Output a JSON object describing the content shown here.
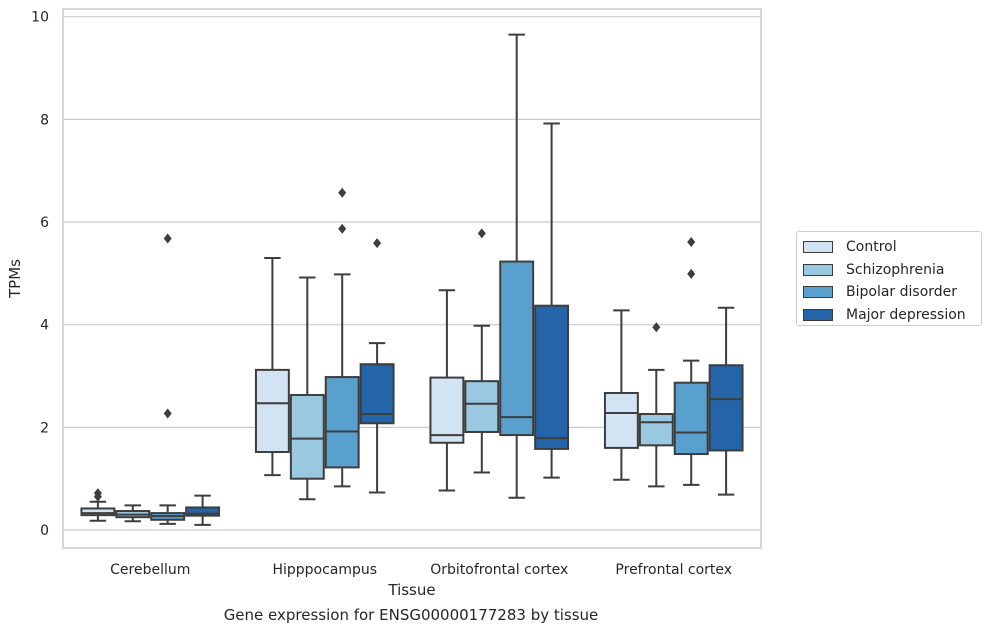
{
  "chart_data": {
    "type": "box",
    "title": "",
    "caption": "Gene expression for ENSG00000177283 by tissue",
    "xlabel": "Tissue",
    "ylabel": "TPMs",
    "ylim": [
      -0.35,
      10.15
    ],
    "yticks": [
      0,
      2,
      4,
      6,
      8,
      10
    ],
    "grid": "horizontal",
    "legend_position": "right",
    "categories": [
      "Cerebellum",
      "Hipppocampus",
      "Orbitofrontal cortex",
      "Prefrontal cortex"
    ],
    "series": [
      {
        "name": "Control",
        "color": "#d2e3f3",
        "boxes": [
          {
            "whislo": 0.18,
            "q1": 0.29,
            "med": 0.33,
            "q3": 0.42,
            "whishi": 0.55,
            "fliers": [
              0.65,
              0.72
            ]
          },
          {
            "whislo": 1.07,
            "q1": 1.52,
            "med": 2.47,
            "q3": 3.12,
            "whishi": 5.3,
            "fliers": []
          },
          {
            "whislo": 0.77,
            "q1": 1.7,
            "med": 1.85,
            "q3": 2.97,
            "whishi": 4.67,
            "fliers": []
          },
          {
            "whislo": 0.98,
            "q1": 1.6,
            "med": 2.28,
            "q3": 2.67,
            "whishi": 4.28,
            "fliers": []
          }
        ]
      },
      {
        "name": "Schizophrenia",
        "color": "#9ac8e0",
        "boxes": [
          {
            "whislo": 0.17,
            "q1": 0.25,
            "med": 0.3,
            "q3": 0.37,
            "whishi": 0.48,
            "fliers": []
          },
          {
            "whislo": 0.6,
            "q1": 1.0,
            "med": 1.78,
            "q3": 2.63,
            "whishi": 4.92,
            "fliers": []
          },
          {
            "whislo": 1.12,
            "q1": 1.91,
            "med": 2.46,
            "q3": 2.9,
            "whishi": 3.98,
            "fliers": [
              5.78
            ]
          },
          {
            "whislo": 0.85,
            "q1": 1.65,
            "med": 2.1,
            "q3": 2.26,
            "whishi": 3.12,
            "fliers": [
              3.95
            ]
          }
        ]
      },
      {
        "name": "Bipolar disorder",
        "color": "#5aa0ce",
        "boxes": [
          {
            "whislo": 0.12,
            "q1": 0.2,
            "med": 0.27,
            "q3": 0.33,
            "whishi": 0.48,
            "fliers": [
              2.27,
              5.68
            ]
          },
          {
            "whislo": 0.85,
            "q1": 1.22,
            "med": 1.92,
            "q3": 2.98,
            "whishi": 4.98,
            "fliers": [
              5.87,
              6.57
            ]
          },
          {
            "whislo": 0.63,
            "q1": 1.85,
            "med": 2.2,
            "q3": 5.23,
            "whishi": 9.65,
            "fliers": []
          },
          {
            "whislo": 0.88,
            "q1": 1.48,
            "med": 1.9,
            "q3": 2.87,
            "whishi": 3.3,
            "fliers": [
              4.99,
              5.61
            ]
          }
        ]
      },
      {
        "name": "Major depression",
        "color": "#2464a8",
        "boxes": [
          {
            "whislo": 0.1,
            "q1": 0.28,
            "med": 0.32,
            "q3": 0.44,
            "whishi": 0.67,
            "fliers": []
          },
          {
            "whislo": 0.73,
            "q1": 2.08,
            "med": 2.26,
            "q3": 3.23,
            "whishi": 3.64,
            "fliers": [
              5.59
            ]
          },
          {
            "whislo": 1.02,
            "q1": 1.58,
            "med": 1.79,
            "q3": 4.37,
            "whishi": 7.92,
            "fliers": []
          },
          {
            "whislo": 0.69,
            "q1": 1.55,
            "med": 2.55,
            "q3": 3.21,
            "whishi": 4.33,
            "fliers": []
          }
        ]
      }
    ]
  }
}
